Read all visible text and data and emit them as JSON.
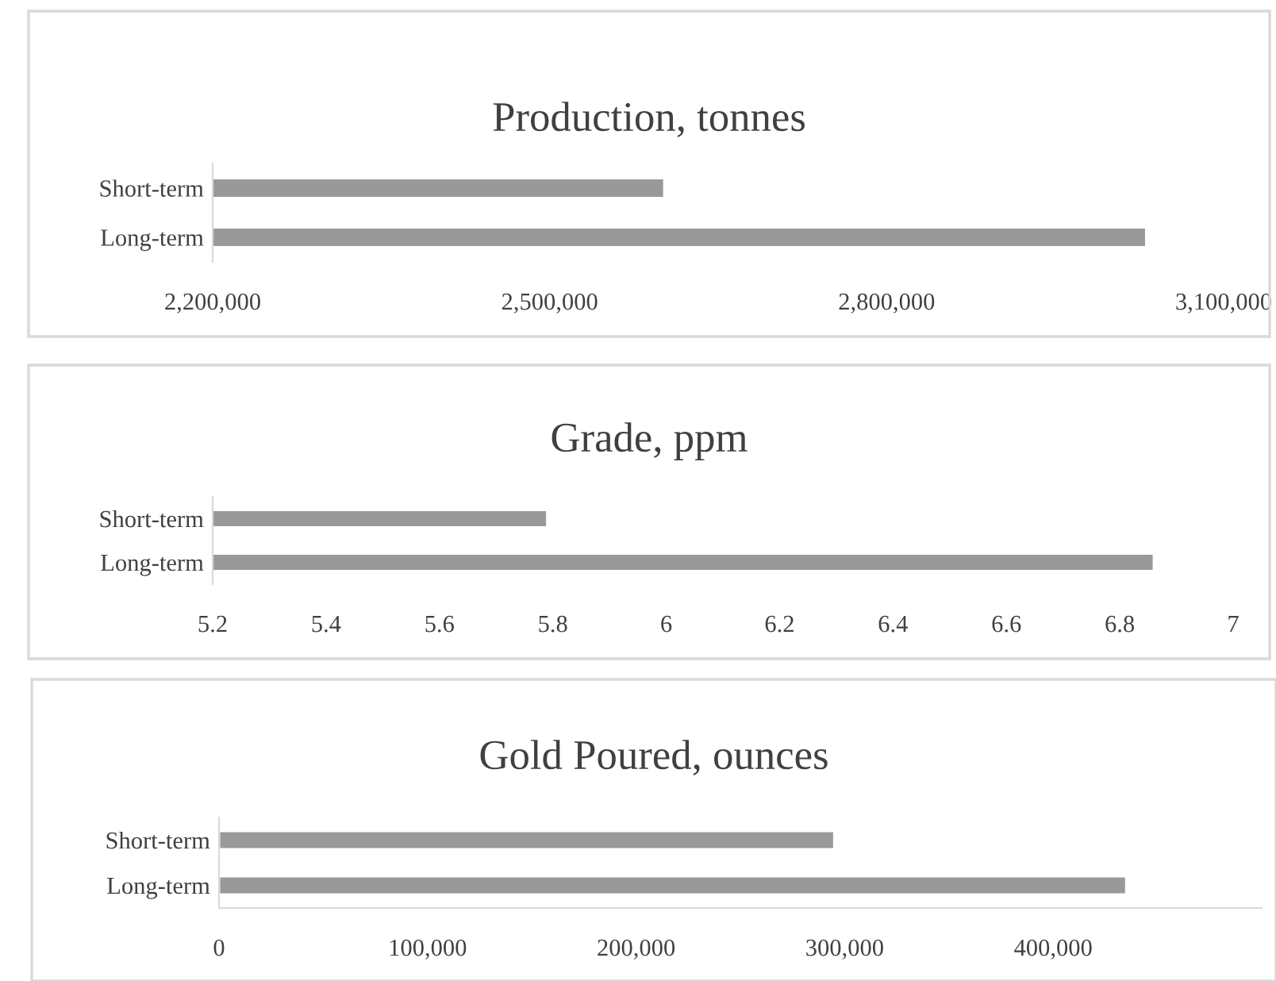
{
  "chart_data": [
    {
      "type": "bar",
      "orientation": "horizontal",
      "title": "Production, tonnes",
      "categories": [
        "Short-term",
        "Long-term"
      ],
      "values": [
        2602000,
        3031000
      ],
      "color": "#999999",
      "xlim": [
        2200000,
        3100000
      ],
      "xticks": [
        {
          "value": 2200000,
          "label": "2,200,000"
        },
        {
          "value": 2500000,
          "label": "2,500,000"
        },
        {
          "value": 2800000,
          "label": "2,800,000"
        },
        {
          "value": 3100000,
          "label": "3,100,000"
        }
      ],
      "grid": false,
      "legend": false
    },
    {
      "type": "bar",
      "orientation": "horizontal",
      "title": "Grade, ppm",
      "categories": [
        "Short-term",
        "Long-term"
      ],
      "values": [
        5.79,
        6.86
      ],
      "color": "#999999",
      "xlim": [
        5.2,
        7
      ],
      "xticks": [
        5.2,
        5.4,
        5.6,
        5.8,
        6,
        6.2,
        6.4,
        6.6,
        6.8,
        7
      ],
      "grid": false,
      "legend": false
    },
    {
      "type": "bar",
      "orientation": "horizontal",
      "title": "Gold Poured, ounces",
      "categories": [
        "Short-term",
        "Long-term"
      ],
      "values": [
        295000,
        435000
      ],
      "color": "#999999",
      "xlim": [
        0,
        500000
      ],
      "xticks": [
        {
          "value": 0,
          "label": "0"
        },
        {
          "value": 100000,
          "label": "100,000"
        },
        {
          "value": 200000,
          "label": "200,000"
        },
        {
          "value": 300000,
          "label": "300,000"
        },
        {
          "value": 400000,
          "label": "400,000"
        }
      ],
      "grid": false,
      "legend": false
    }
  ]
}
